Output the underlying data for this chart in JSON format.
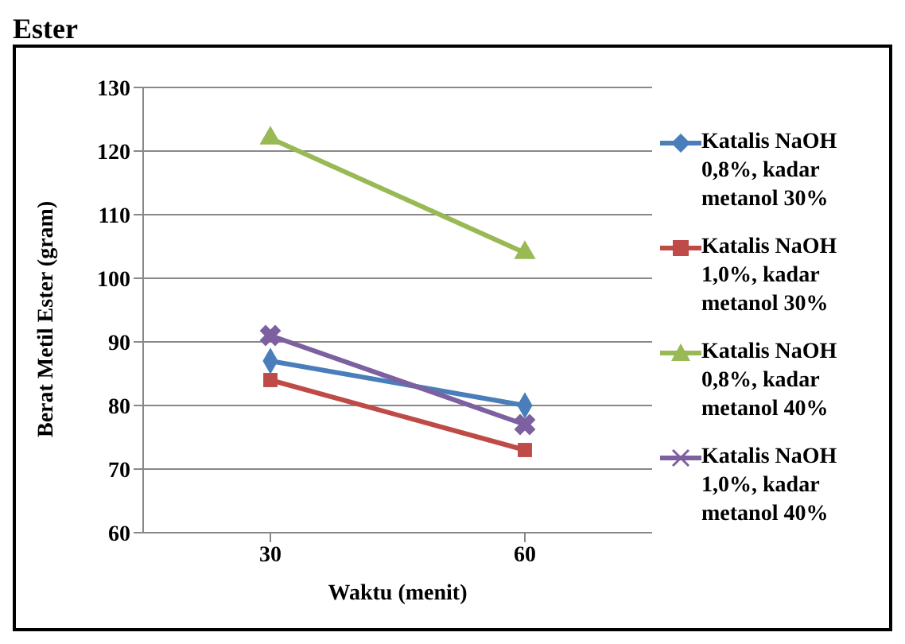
{
  "chart_data": {
    "type": "line",
    "annotations": [
      "Ester"
    ],
    "xlabel": "Waktu (menit)",
    "ylabel": "Berat Metil Ester (gram)",
    "categories": [
      "30",
      "60"
    ],
    "ylim": [
      60,
      130
    ],
    "yticks": [
      60,
      70,
      80,
      90,
      100,
      110,
      120,
      130
    ],
    "grid": "y",
    "legend": "right",
    "series": [
      {
        "name": "Katalis NaOH 0,8%, kadar metanol 30%",
        "color": "#4a7ebb",
        "marker": "diamond",
        "values": [
          87,
          80
        ]
      },
      {
        "name": "Katalis NaOH 1,0%, kadar metanol 30%",
        "color": "#be4b48",
        "marker": "square",
        "values": [
          84,
          73
        ]
      },
      {
        "name": "Katalis NaOH 0,8%, kadar metanol 40%",
        "color": "#98b954",
        "marker": "triangle",
        "values": [
          122,
          104
        ]
      },
      {
        "name": "Katalis NaOH 1,0%, kadar metanol 40%",
        "color": "#7d60a0",
        "marker": "cross",
        "values": [
          91,
          77
        ]
      }
    ]
  }
}
